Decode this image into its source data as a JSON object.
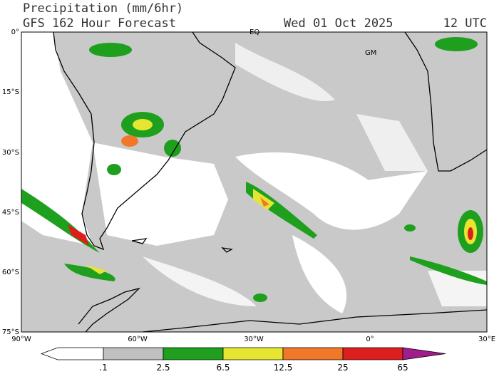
{
  "header": {
    "title": "Precipitation (mm/6hr)",
    "subtitle": "GFS 162 Hour Forecast",
    "date": "Wed 01 Oct 2025",
    "time": "12 UTC"
  },
  "map": {
    "lat_labels": [
      "0°",
      "15°S",
      "30°S",
      "45°S",
      "60°S",
      "75°S"
    ],
    "lon_labels": [
      "90°W",
      "60°W",
      "30°W",
      "0°",
      "30°E"
    ],
    "annotations": [
      "EQ",
      "GM"
    ]
  },
  "colorbar": {
    "labels": [
      ".1",
      "2.5",
      "6.5",
      "12.5",
      "25",
      "65"
    ],
    "colors": [
      "#ffffff",
      "#c0c0c0",
      "#1ea01e",
      "#e6e632",
      "#f07828",
      "#dc1e1e",
      "#a01e8c"
    ]
  }
}
